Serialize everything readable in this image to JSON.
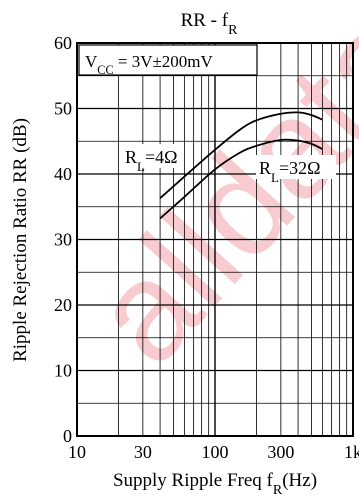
{
  "chart_data": {
    "type": "line",
    "title": "RR - fR",
    "xlabel": "Supply Ripple Freq fR(Hz)",
    "ylabel": "Ripple Rejection Ratio RR (dB)",
    "x_scale": "log",
    "xlim": [
      10,
      1000
    ],
    "ylim": [
      0,
      60
    ],
    "x_tick_labels": [
      "10",
      "30",
      "100",
      "300",
      "1k"
    ],
    "x_tick_values": [
      10,
      30,
      100,
      300,
      1000
    ],
    "y_tick_labels": [
      "0",
      "10",
      "20",
      "30",
      "40",
      "50",
      "60"
    ],
    "y_tick_values": [
      0,
      10,
      20,
      30,
      40,
      50,
      60
    ],
    "grid": true,
    "annotations": [
      {
        "text": "VCC = 3V±200mV",
        "position": "top-left box"
      },
      {
        "text": "RL=4Ω",
        "position": "left of upper curve"
      },
      {
        "text": "RL=32Ω",
        "position": "below right of lower curve"
      }
    ],
    "series": [
      {
        "name": "RL=4Ω",
        "x": [
          40,
          60,
          100,
          150,
          200,
          300,
          400,
          500,
          600
        ],
        "y": [
          36.3,
          39.6,
          43.7,
          46.7,
          48.2,
          49.2,
          49.4,
          49.0,
          48.3
        ]
      },
      {
        "name": "RL=32Ω",
        "x": [
          40,
          60,
          100,
          150,
          200,
          300,
          400,
          500,
          600
        ],
        "y": [
          33.2,
          36.5,
          40.7,
          43.2,
          44.3,
          45.2,
          45.1,
          44.6,
          43.8
        ]
      }
    ],
    "watermark": "alldatasheet",
    "colors": {
      "axis": "#000000",
      "curve": "#000000",
      "watermark": "#f3a0aa"
    }
  }
}
